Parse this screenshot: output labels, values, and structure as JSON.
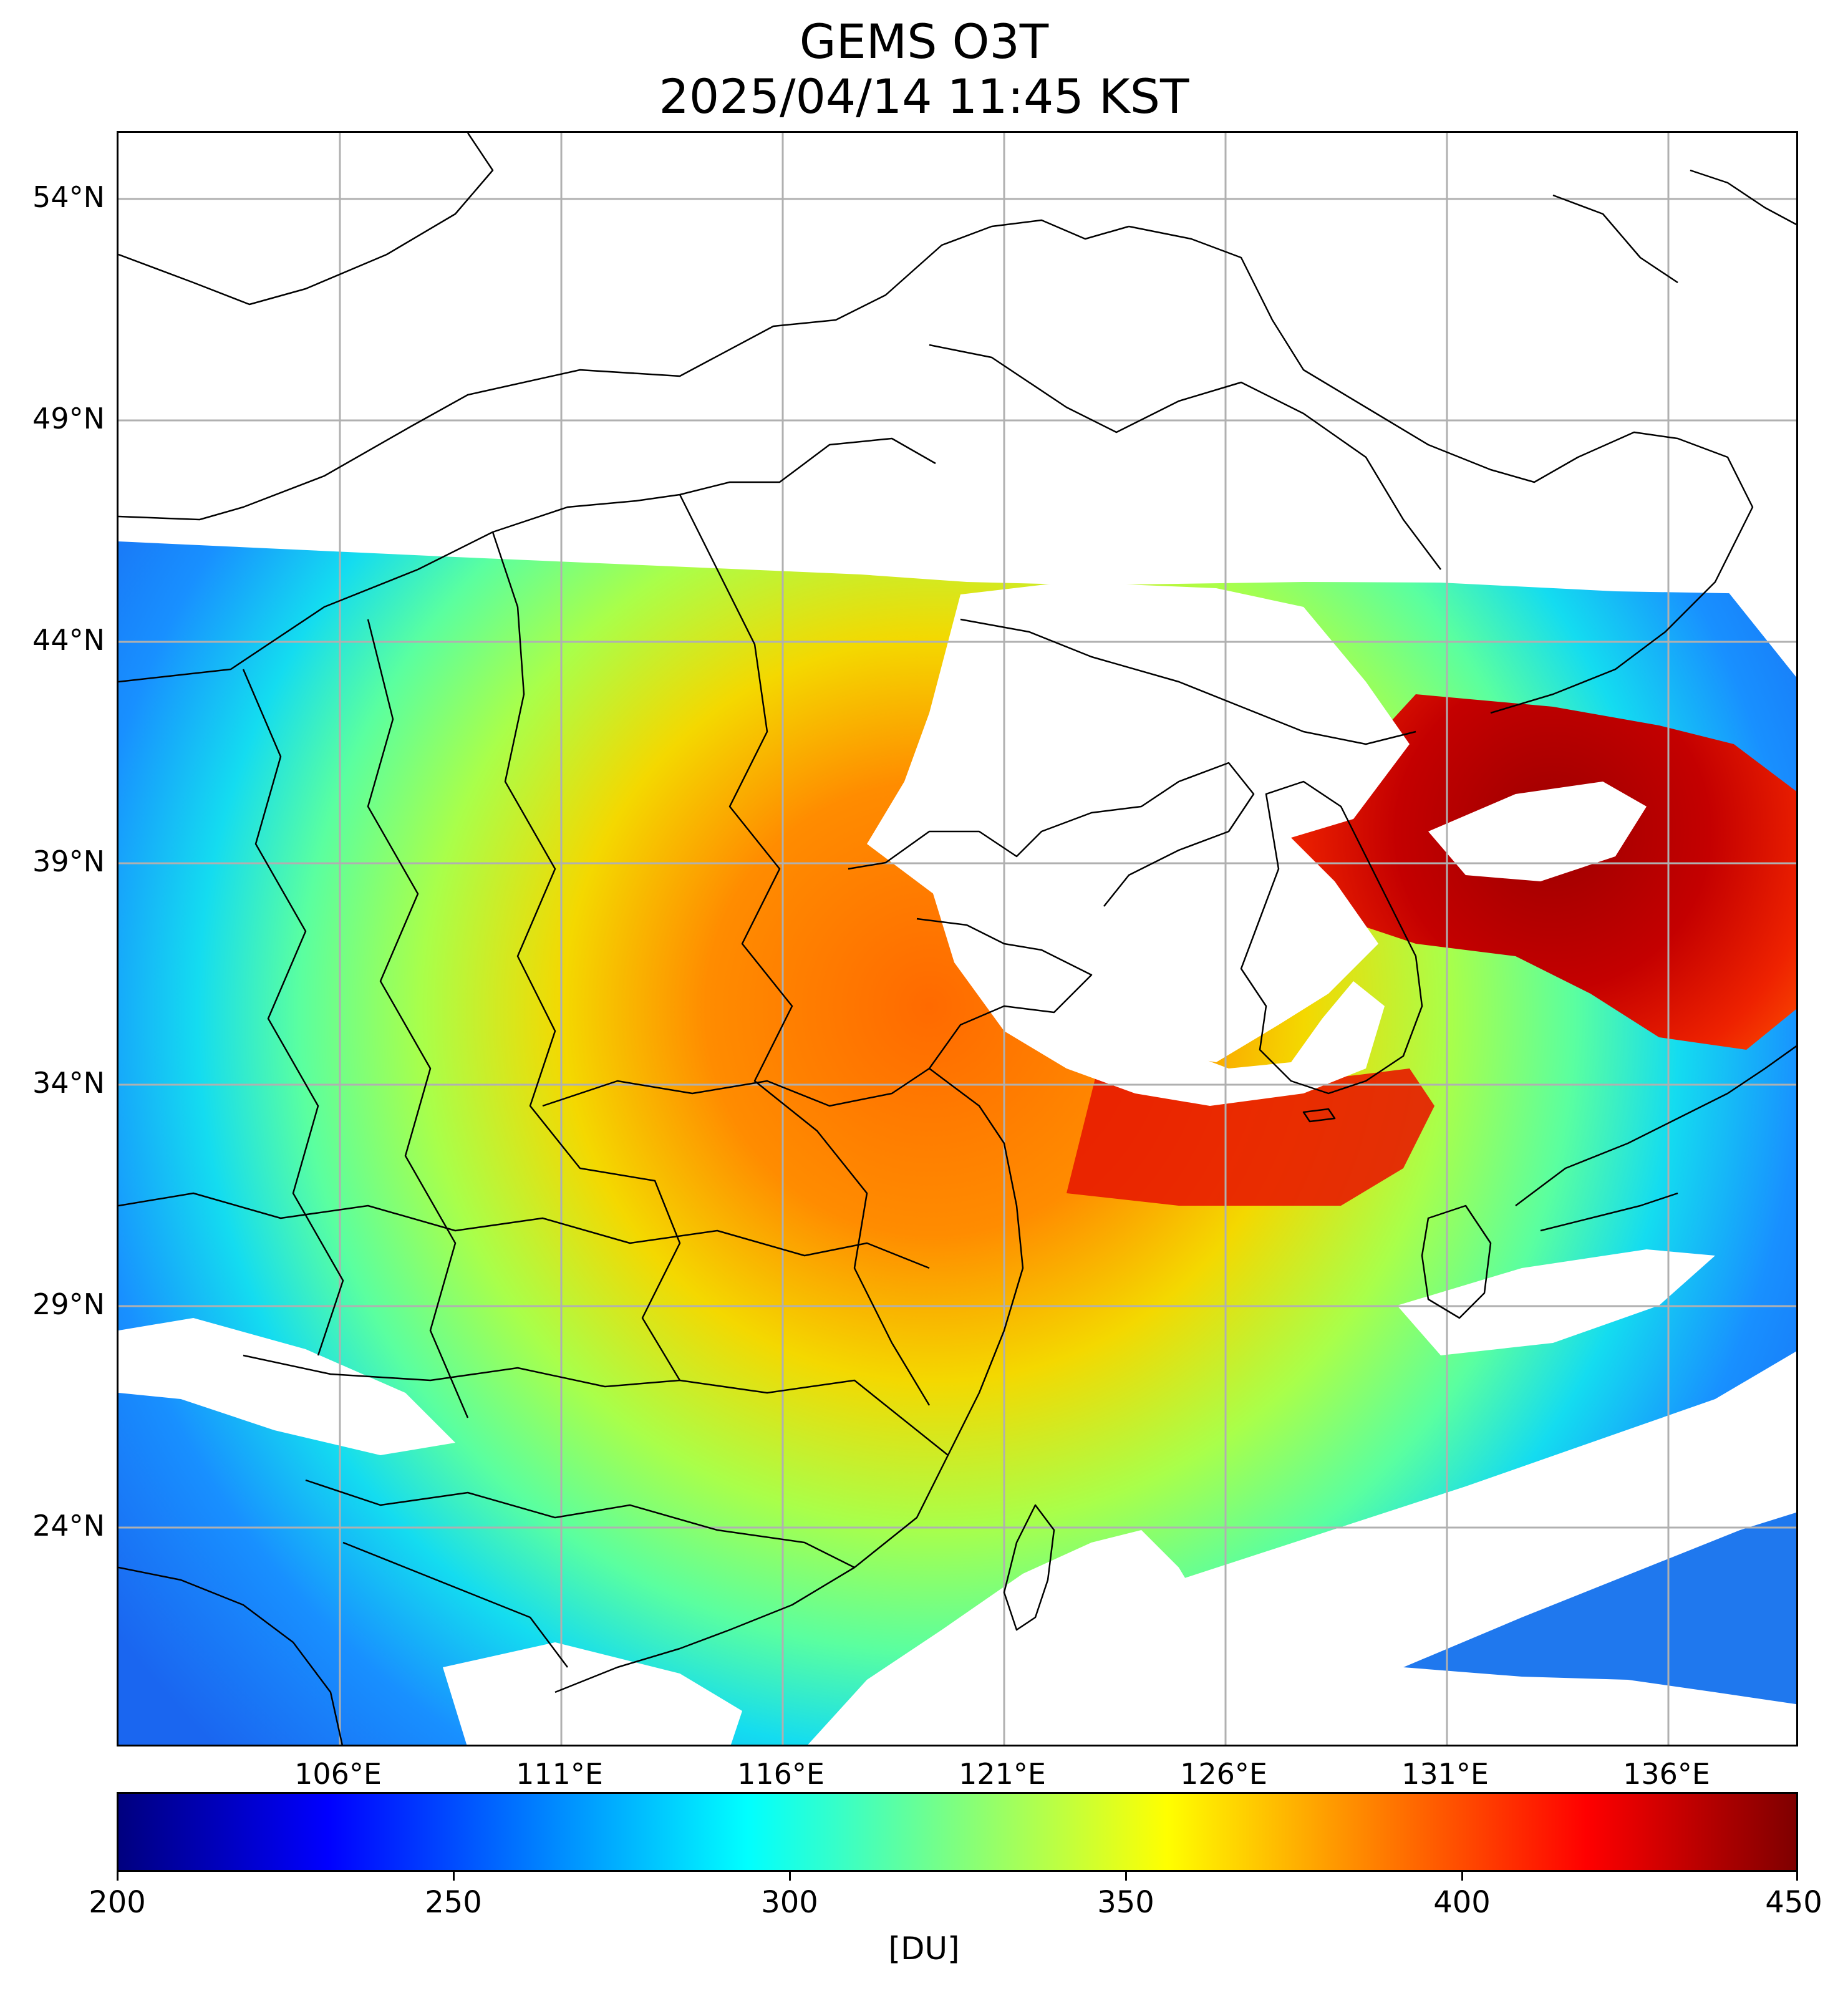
{
  "title_line1": "GEMS O3T",
  "title_line2": "2025/04/14 11:45 KST",
  "lat_ticks": [
    "54°N",
    "49°N",
    "44°N",
    "39°N",
    "34°N",
    "29°N",
    "24°N"
  ],
  "lon_ticks": [
    "106°E",
    "111°E",
    "116°E",
    "121°E",
    "126°E",
    "131°E",
    "136°E"
  ],
  "colorbar": {
    "min": 200,
    "max": 450,
    "ticks": [
      "200",
      "250",
      "300",
      "350",
      "400",
      "450"
    ],
    "unit": "[DU]",
    "colormap": "jet"
  },
  "map_extent": {
    "lon": [
      101,
      139
    ],
    "lat": [
      19,
      55.5
    ]
  },
  "colors": {
    "grid": "#b0b0b0",
    "border": "#000000",
    "no_data": "#ffffff"
  }
}
